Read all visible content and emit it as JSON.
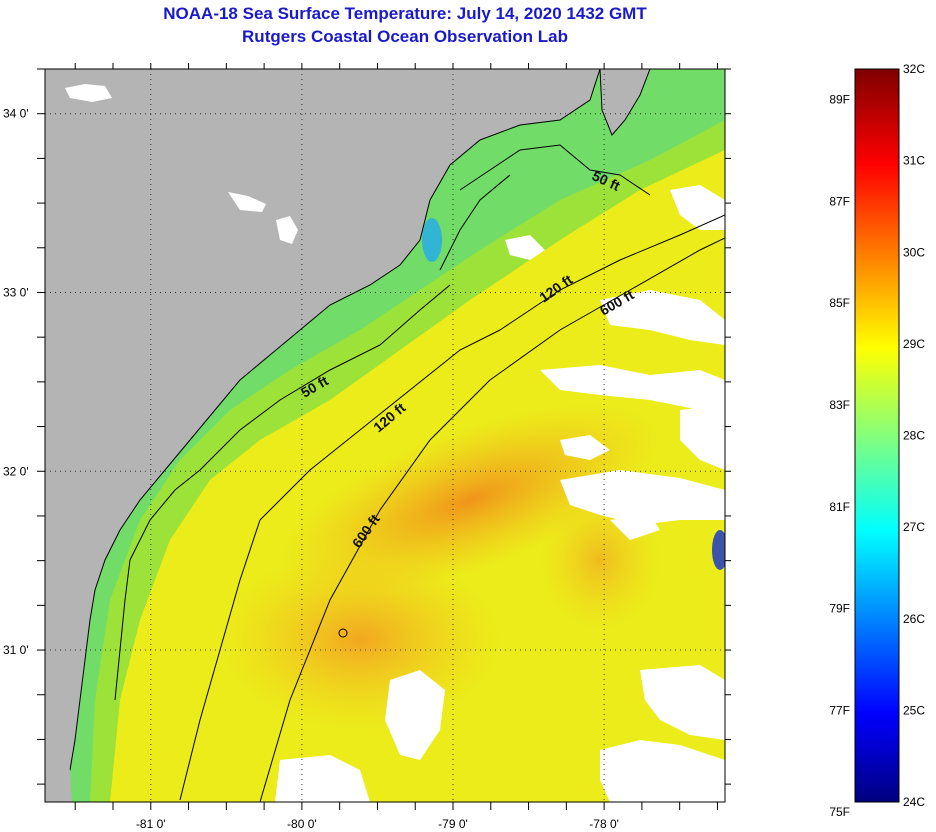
{
  "header": {
    "title": "NOAA-18 Sea Surface Temperature:  July 14, 2020 1432 GMT",
    "subtitle": "Rutgers Coastal Ocean Observation Lab"
  },
  "map": {
    "lon_range": [
      -81.7,
      -77.2
    ],
    "lat_range": [
      30.15,
      34.25
    ],
    "lon_ticks": [
      {
        "value": -81,
        "label": "-81 0'"
      },
      {
        "value": -80,
        "label": "-80 0'"
      },
      {
        "value": -79,
        "label": "-79 0'"
      },
      {
        "value": -78,
        "label": "-78 0'"
      }
    ],
    "lat_ticks": [
      {
        "value": 34,
        "label": "34 0'"
      },
      {
        "value": 33,
        "label": "33 0'"
      },
      {
        "value": 32,
        "label": "32 0'"
      },
      {
        "value": 31,
        "label": "31 0'"
      }
    ],
    "contours": [
      {
        "label": "50 ft",
        "lon": -78.0,
        "lat": 33.6
      },
      {
        "label": "50 ft",
        "lon": -79.9,
        "lat": 32.45
      },
      {
        "label": "120 ft",
        "lon": -78.3,
        "lat": 33.0
      },
      {
        "label": "120 ft",
        "lon": -79.4,
        "lat": 32.28
      },
      {
        "label": "600 ft",
        "lon": -77.9,
        "lat": 32.92
      },
      {
        "label": "600 ft",
        "lon": -79.55,
        "lat": 31.65
      }
    ],
    "colors": {
      "land": "#b4b4b4",
      "cloud": "#ffffff",
      "grid": "#333333"
    }
  },
  "colorbar": {
    "c_range": [
      24,
      32
    ],
    "celsius_labels": [
      "32C",
      "31C",
      "30C",
      "29C",
      "28C",
      "27C",
      "26C",
      "25C",
      "24C"
    ],
    "fahrenheit_labels": [
      "89F",
      "87F",
      "85F",
      "83F",
      "81F",
      "79F",
      "77F",
      "75F"
    ]
  }
}
